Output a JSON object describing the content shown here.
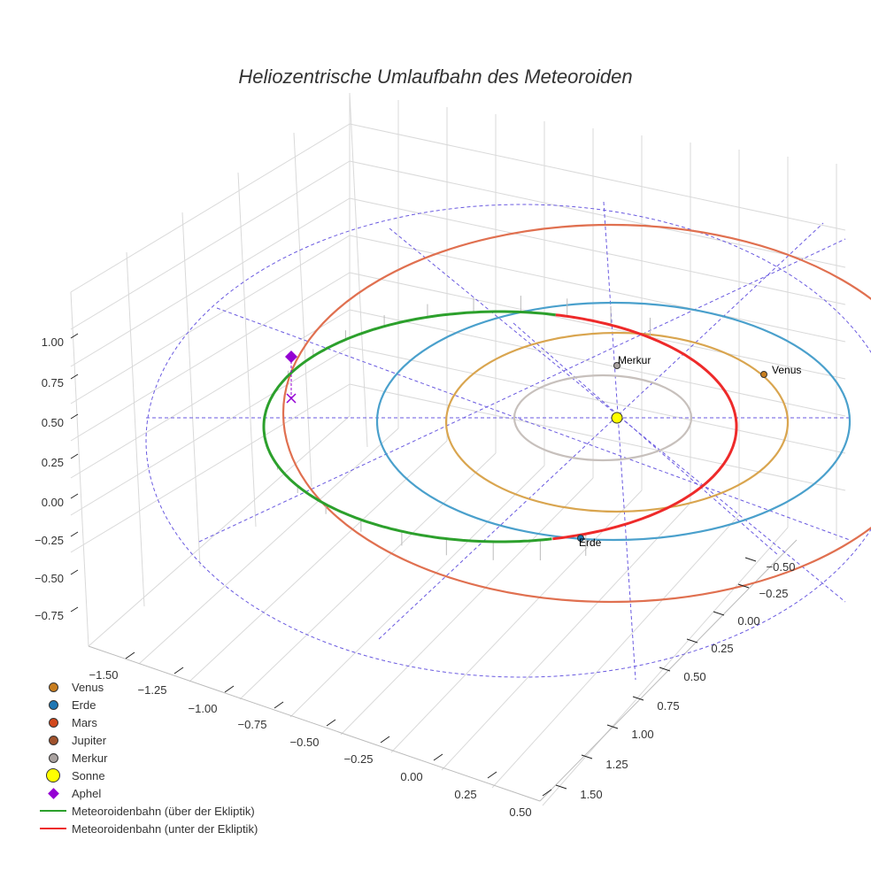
{
  "chart_data": {
    "type": "line",
    "projection": "3d",
    "title": "Heliozentrische Umlaufbahn des Meteoroiden",
    "x_ticks": [
      "−1.50",
      "−1.25",
      "−1.00",
      "−0.75",
      "−0.50",
      "−0.25",
      "0.00",
      "0.25",
      "0.50"
    ],
    "y_ticks": [
      "−0.50",
      "−0.25",
      "0.00",
      "0.25",
      "0.50",
      "0.75",
      "1.00",
      "1.25",
      "1.50"
    ],
    "z_ticks": [
      "1.00",
      "0.75",
      "0.50",
      "0.25",
      "0.00",
      "−0.25",
      "−0.50",
      "−0.75"
    ],
    "xlim": [
      -1.6,
      0.55
    ],
    "ylim": [
      -0.6,
      1.6
    ],
    "zlim": [
      -0.8,
      1.1
    ],
    "grid": true,
    "legend_position": "bottom-left",
    "planet_labels": {
      "merkur": "Merkur",
      "venus": "Venus",
      "erde": "Erde"
    },
    "series": [
      {
        "name": "Venus",
        "kind": "marker",
        "color": "#c87d1e"
      },
      {
        "name": "Erde",
        "kind": "marker",
        "color": "#1f77b4"
      },
      {
        "name": "Mars",
        "kind": "marker",
        "color": "#d2481c"
      },
      {
        "name": "Jupiter",
        "kind": "marker",
        "color": "#a0522d"
      },
      {
        "name": "Merkur",
        "kind": "marker",
        "color": "#a9a2a0"
      },
      {
        "name": "Sonne",
        "kind": "marker-large",
        "color": "#ffff00"
      },
      {
        "name": "Aphel",
        "kind": "diamond",
        "color": "#9400d3"
      },
      {
        "name": "Meteoroidenbahn (über der Ekliptik)",
        "kind": "line",
        "color": "#2ca02c"
      },
      {
        "name": "Meteoroidenbahn (unter der Ekliptik)",
        "kind": "line",
        "color": "#ee2a2a"
      }
    ],
    "orbit_colors": {
      "merkur": "#c7c0bc",
      "venus": "#d9a54f",
      "erde": "#4aa0cc",
      "mars": "#e07050",
      "reference": "#6a5ae0"
    }
  }
}
